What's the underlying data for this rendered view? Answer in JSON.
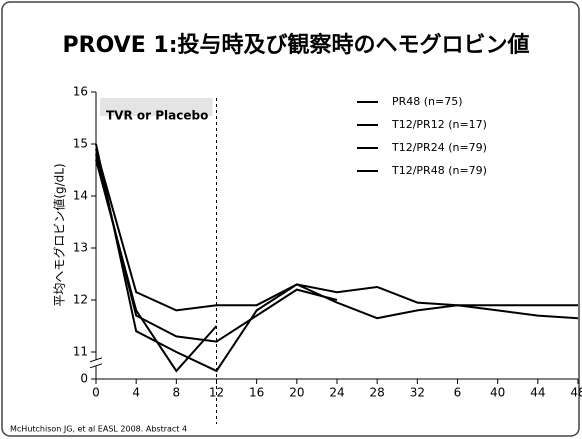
{
  "chart_data": {
    "type": "line",
    "title": "PROVE 1:投与時及び観察時のヘモグロビン値",
    "y_label": "平均ヘモグロビン値(g/dL)",
    "annotation": {
      "text": "TVR or Placebo",
      "x": 12
    },
    "source": "McHutchison JG, et al EASL 2008.  Abstract 4",
    "x": [
      0,
      4,
      8,
      12,
      16,
      20,
      24,
      28,
      32,
      36,
      40,
      44,
      48
    ],
    "xlim": [
      0,
      48
    ],
    "xticks": [
      0,
      4,
      8,
      12,
      16,
      20,
      24,
      28,
      32,
      {
        "value": 36,
        "label": "6"
      },
      40,
      44,
      48
    ],
    "ylim": [
      0,
      16
    ],
    "yticks": [
      0,
      11,
      12,
      13,
      14,
      15,
      16
    ],
    "axis_break": true,
    "legend": "top-right",
    "series": [
      {
        "name": "PR48 (n=75)",
        "color": "#000000",
        "values": [
          14.9,
          12.15,
          11.8,
          11.9,
          11.9,
          12.3,
          12.15,
          12.25,
          11.95,
          11.9,
          11.9,
          11.9,
          11.9
        ]
      },
      {
        "name": "T12/PR12 (n=17)",
        "color": "#000000",
        "values": [
          15.0,
          11.4,
          11.0,
          10.95,
          11.8,
          12.3,
          11.95,
          11.65,
          11.8,
          11.9,
          11.8,
          11.7,
          11.65
        ]
      },
      {
        "name": "T12/PR24 (n=79)",
        "color": "#000000",
        "values": [
          14.8,
          11.7,
          11.3,
          11.2,
          11.7,
          12.2,
          12.0,
          null,
          null,
          null,
          null,
          null,
          null
        ]
      },
      {
        "name": "T12/PR48 (n=79)",
        "color": "#000000",
        "values": [
          14.7,
          11.8,
          10.95,
          11.5,
          null,
          null,
          null,
          null,
          null,
          null,
          null,
          null,
          null
        ]
      }
    ]
  }
}
